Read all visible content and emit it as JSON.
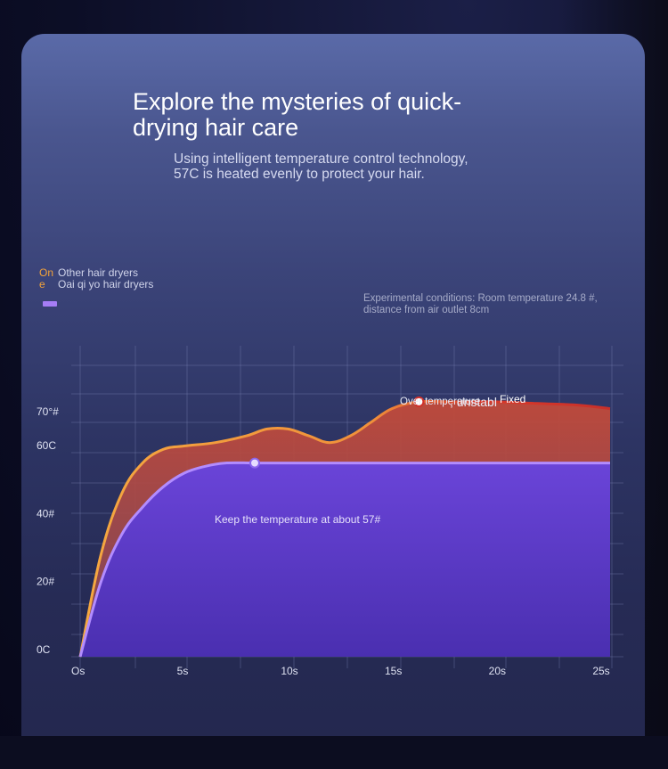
{
  "header": {
    "title": "Explore the mysteries of quick-drying hair care",
    "subtitle": "Using intelligent temperature control technology, 57C is heated evenly to protect your hair."
  },
  "legend": {
    "items": [
      {
        "key": "On e",
        "label": "Other hair dryers",
        "color": "#f2a33a"
      },
      {
        "key": "",
        "label": "Oai qi yo hair dryers",
        "color": "#a57df5"
      }
    ]
  },
  "conditions": "Experimental conditions: Room temperature 24.8 #, distance from air outlet 8cm",
  "annotations": {
    "over_temp": "Over temperature",
    "unstable": ", unstabl",
    "fixed": "Fixed",
    "keep_temp": "Keep the temperature at about 57#"
  },
  "chart_data": {
    "type": "line",
    "xlabel": "",
    "ylabel": "",
    "x_ticks": [
      "Os",
      "5s",
      "10s",
      "15s",
      "20s",
      "25s"
    ],
    "y_ticks": [
      "0C",
      "20#",
      "40#",
      "60C",
      "70°#"
    ],
    "y_tick_values": [
      0,
      20,
      40,
      60,
      70
    ],
    "xlim": [
      0,
      25.5
    ],
    "grid": true,
    "series": [
      {
        "name": "Other hair dryers",
        "color": "#f2a33a",
        "x": [
          0,
          1,
          2,
          3,
          4,
          5,
          6.5,
          8,
          9,
          10,
          11,
          12,
          13,
          14,
          15,
          16.3,
          18,
          20,
          22,
          24,
          25.5
        ],
        "y": [
          0,
          30,
          48,
          57,
          61,
          62,
          63,
          65,
          67,
          67,
          65,
          63,
          65,
          69,
          73,
          75,
          75,
          75,
          74.5,
          74,
          73
        ]
      },
      {
        "name": "Oai qi yo hair dryers",
        "color": "#a57df5",
        "x": [
          0,
          1,
          2,
          3,
          4,
          5,
          6,
          7,
          8.4,
          10,
          15,
          20,
          25.5
        ],
        "y": [
          0,
          22,
          36,
          44,
          50,
          54,
          56,
          57,
          57,
          57,
          57,
          57,
          57
        ]
      }
    ],
    "markers": [
      {
        "series": "Other hair dryers",
        "x": 16.3,
        "y": 75
      },
      {
        "series": "Oai qi yo hair dryers",
        "x": 8.4,
        "y": 57
      }
    ]
  }
}
